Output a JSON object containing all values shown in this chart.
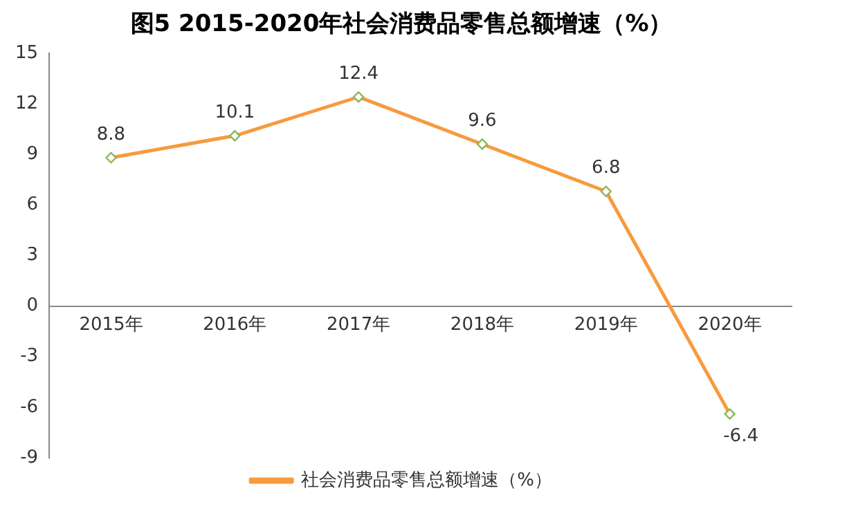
{
  "chart_data": {
    "type": "line",
    "title": "图5 2015-2020年社会消费品零售总额增速（%）",
    "categories": [
      "2015年",
      "2016年",
      "2017年",
      "2018年",
      "2019年",
      "2020年"
    ],
    "series": [
      {
        "name": "社会消费品零售总额增速（%）",
        "color": "#f79a3e",
        "values": [
          8.8,
          10.1,
          12.4,
          9.6,
          6.8,
          -6.4
        ]
      }
    ],
    "ylim": [
      -9,
      15
    ],
    "yticks": [
      -9,
      -6,
      -3,
      0,
      3,
      6,
      9,
      12,
      15
    ],
    "grid": false,
    "legend": "bottom",
    "marker": "diamond",
    "line_style": "solid",
    "data_labels": true
  }
}
